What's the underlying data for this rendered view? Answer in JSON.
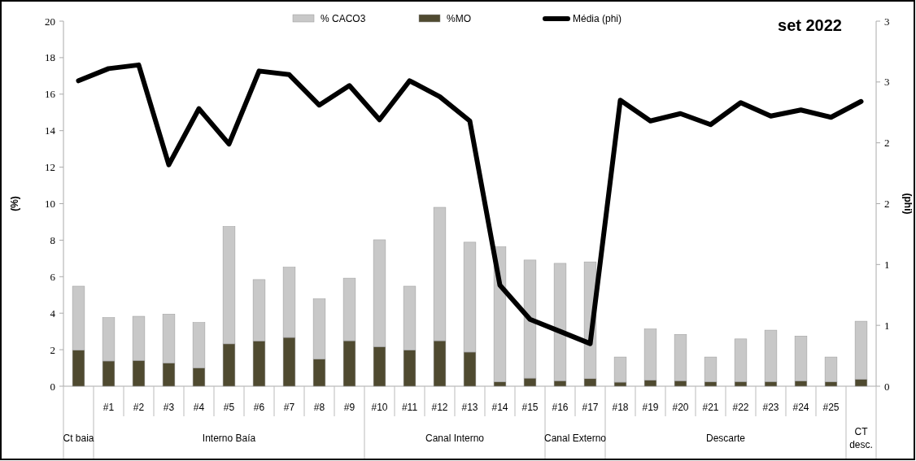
{
  "chart_data": {
    "type": "bar",
    "title": "set 2022",
    "ylabel": "(%)",
    "y2label": "(phi)",
    "categories": [
      null,
      "#1",
      "#2",
      "#3",
      "#4",
      "#5",
      "#6",
      "#7",
      "#8",
      "#9",
      "#10",
      "#11",
      "#12",
      "#13",
      "#14",
      "#15",
      "#16",
      "#17",
      "#18",
      "#19",
      "#20",
      "#21",
      "#22",
      "#23",
      "#24",
      "#25",
      null
    ],
    "stacked": true,
    "series": [
      {
        "name": "%MO",
        "color": "#4f4a30",
        "values": [
          1.97,
          1.38,
          1.41,
          1.27,
          1.0,
          2.32,
          2.48,
          2.67,
          1.48,
          2.49,
          2.16,
          1.98,
          2.49,
          1.87,
          0.24,
          0.44,
          0.3,
          0.41,
          0.22,
          0.33,
          0.3,
          0.24,
          0.25,
          0.25,
          0.29,
          0.24,
          0.38
        ]
      },
      {
        "name": "% CACO3",
        "color": "#c8c8c8",
        "values": [
          3.51,
          2.38,
          2.42,
          2.68,
          2.49,
          6.43,
          3.36,
          3.85,
          3.31,
          3.43,
          5.86,
          3.5,
          7.31,
          6.02,
          7.4,
          6.47,
          6.43,
          6.4,
          1.38,
          2.81,
          2.54,
          1.36,
          2.34,
          2.82,
          2.46,
          1.36,
          3.18
        ]
      },
      {
        "name": "Média (phi)",
        "type": "line",
        "axis": "y2",
        "color": "#000000",
        "values": [
          2.51,
          2.61,
          2.64,
          1.82,
          2.28,
          1.99,
          2.59,
          2.56,
          2.31,
          2.47,
          2.19,
          2.51,
          2.38,
          2.18,
          0.83,
          0.55,
          0.45,
          0.35,
          2.35,
          2.18,
          2.24,
          2.15,
          2.33,
          2.22,
          2.27,
          2.21,
          2.34
        ]
      }
    ],
    "ylim": [
      0,
      20
    ],
    "yticks": [
      0,
      2,
      4,
      6,
      8,
      10,
      12,
      14,
      16,
      18,
      20
    ],
    "y2lim": [
      0,
      3
    ],
    "y2ticks": [
      0,
      {
        "value": 0.5,
        "label": "1"
      },
      1,
      {
        "value": 1.5,
        "label": "2"
      },
      2,
      {
        "value": 2.5,
        "label": "3"
      },
      3
    ],
    "annotations": [
      "Ct baia",
      "Interno Baía",
      "Canal Interno",
      "Canal Externo",
      "Descarte",
      "CT desc."
    ],
    "legend": "top",
    "grid": false,
    "marker": "none",
    "line_style": "solid"
  }
}
